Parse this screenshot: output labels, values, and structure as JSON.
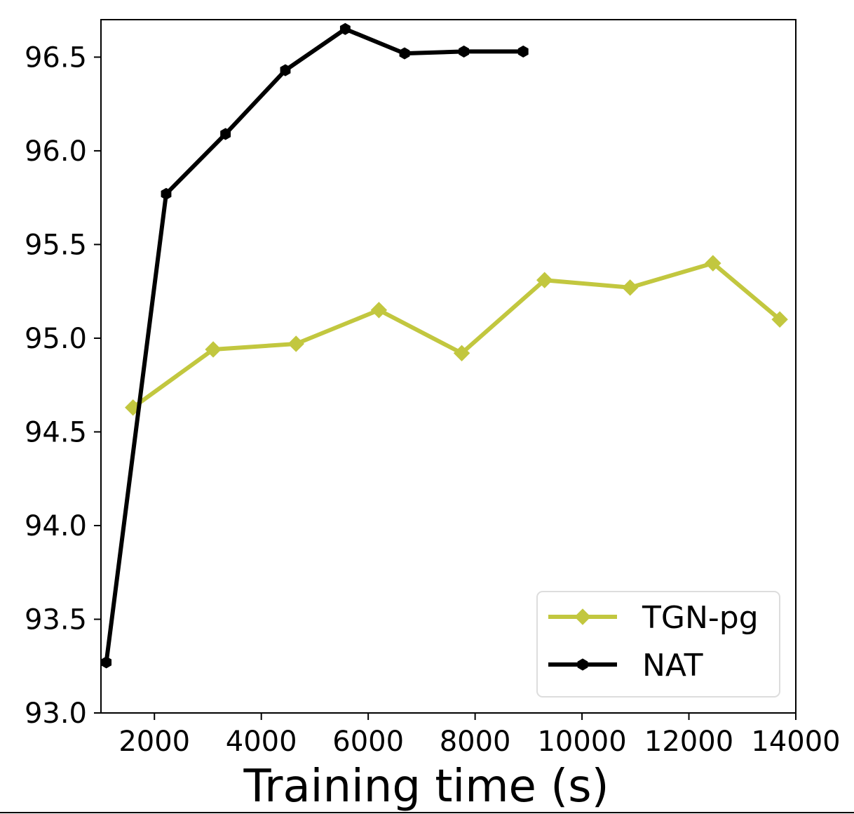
{
  "chart_data": {
    "type": "line",
    "xlabel": "Training time (s)",
    "ylabel": "",
    "xlim": [
      1000,
      14000
    ],
    "ylim": [
      93.0,
      96.7
    ],
    "xticks": [
      2000,
      4000,
      6000,
      8000,
      10000,
      12000,
      14000
    ],
    "yticks": [
      93.0,
      93.5,
      94.0,
      94.5,
      95.0,
      95.5,
      96.0,
      96.5
    ],
    "grid": false,
    "legend_position": "bottom-right",
    "series": [
      {
        "name": "TGN-pg",
        "color": "#c2c73f",
        "marker": "diamond",
        "x": [
          1600,
          3100,
          4650,
          6200,
          7750,
          9300,
          10900,
          12450,
          13700
        ],
        "y": [
          94.63,
          94.94,
          94.97,
          95.15,
          94.92,
          95.31,
          95.27,
          95.4,
          95.1
        ]
      },
      {
        "name": "NAT",
        "color": "#000000",
        "marker": "hexagon",
        "x": [
          1100,
          2220,
          3330,
          4450,
          5570,
          6680,
          7790,
          8900
        ],
        "y": [
          93.27,
          95.77,
          96.09,
          96.43,
          96.65,
          96.52,
          96.53,
          96.53
        ]
      }
    ]
  }
}
